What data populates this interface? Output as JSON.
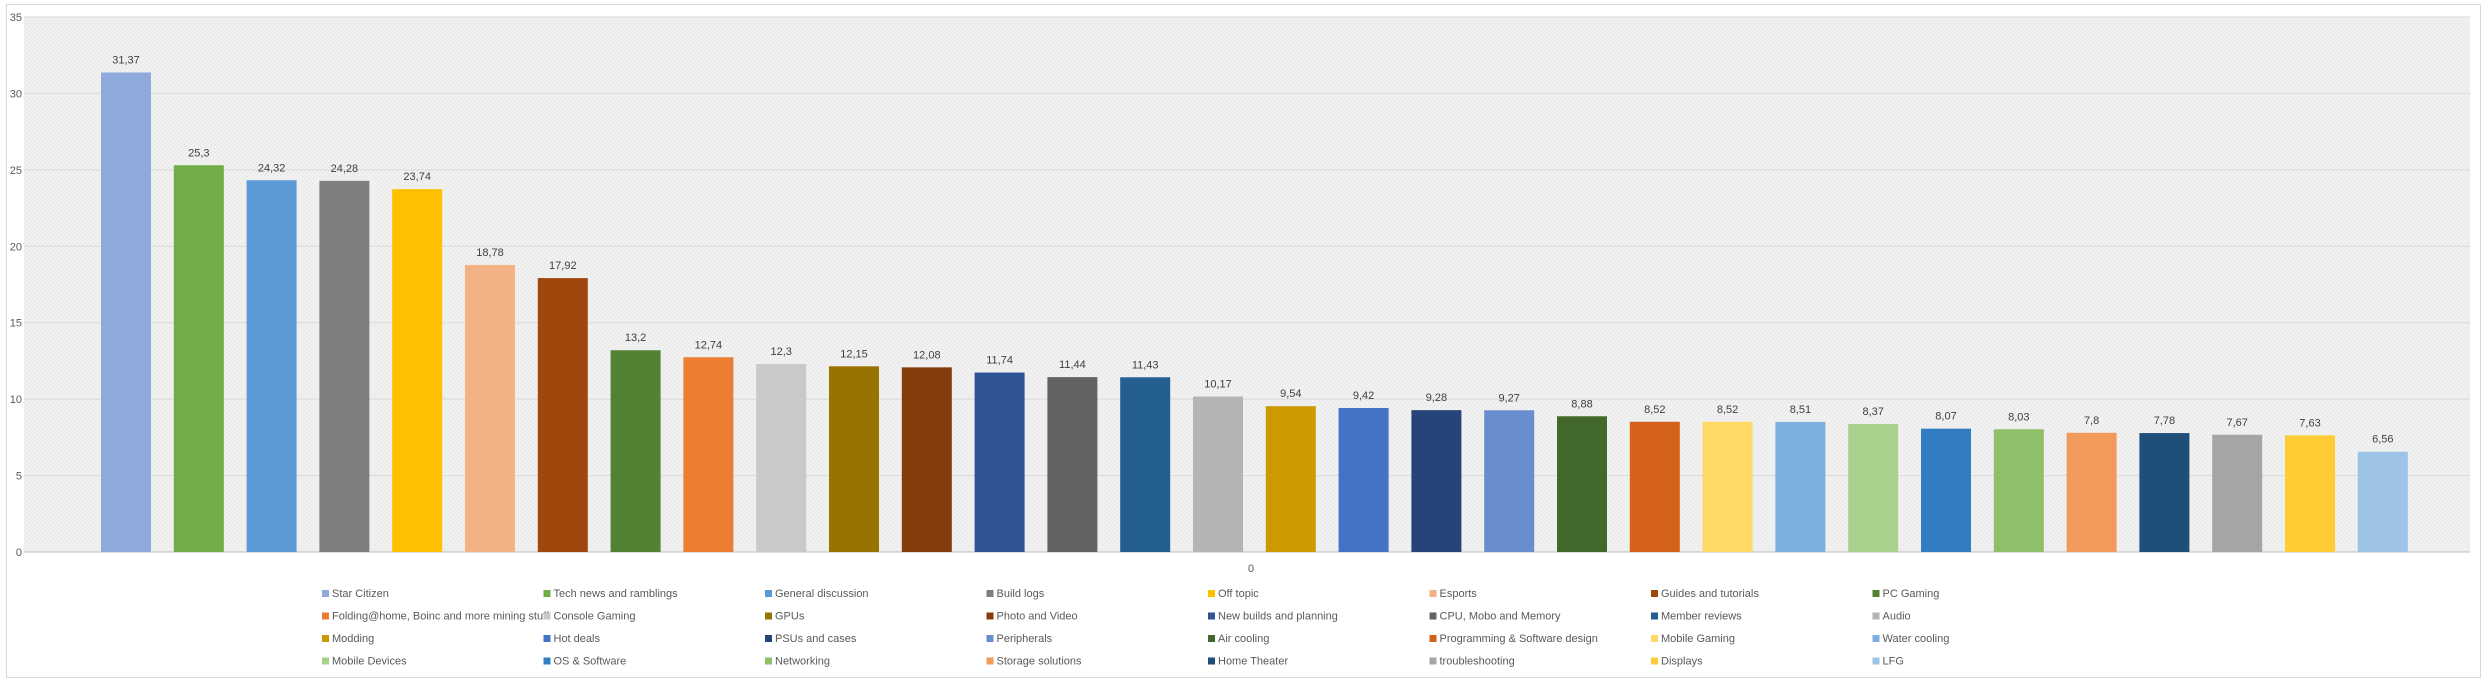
{
  "chart_data": {
    "type": "bar",
    "title": "",
    "xlabel": "",
    "ylabel": "",
    "ylim": [
      0,
      35
    ],
    "yticks": [
      0,
      5,
      10,
      15,
      20,
      25,
      30,
      35
    ],
    "x_axis_label": "0",
    "grid": true,
    "legend_position": "bottom",
    "series": [
      {
        "name": "Star Citizen",
        "value": 31.37,
        "label": "31,37",
        "color": "#8eaadb"
      },
      {
        "name": "Tech news and ramblings",
        "value": 25.3,
        "label": "25,3",
        "color": "#70ad47"
      },
      {
        "name": "General discussion",
        "value": 24.32,
        "label": "24,32",
        "color": "#5b9bd5"
      },
      {
        "name": "Build logs",
        "value": 24.28,
        "label": "24,28",
        "color": "#7f7f7f"
      },
      {
        "name": "Off topic",
        "value": 23.74,
        "label": "23,74",
        "color": "#ffc000"
      },
      {
        "name": "Esports",
        "value": 18.78,
        "label": "18,78",
        "color": "#f4b183"
      },
      {
        "name": "Guides and tutorials",
        "value": 17.92,
        "label": "17,92",
        "color": "#9e480e"
      },
      {
        "name": "PC Gaming",
        "value": 13.2,
        "label": "13,2",
        "color": "#548235"
      },
      {
        "name": "Folding@home, Boinc and more mining stuff",
        "value": 12.74,
        "label": "12,74",
        "color": "#ed7d31"
      },
      {
        "name": "Console Gaming",
        "value": 12.3,
        "label": "12,3",
        "color": "#c9c9c9"
      },
      {
        "name": "GPUs",
        "value": 12.15,
        "label": "12,15",
        "color": "#997300"
      },
      {
        "name": "Photo and Video",
        "value": 12.08,
        "label": "12,08",
        "color": "#843c0c"
      },
      {
        "name": "New builds and planning",
        "value": 11.74,
        "label": "11,74",
        "color": "#2f5597"
      },
      {
        "name": "CPU, Mobo and Memory",
        "value": 11.44,
        "label": "11,44",
        "color": "#636363"
      },
      {
        "name": "Member reviews",
        "value": 11.43,
        "label": "11,43",
        "color": "#255e91"
      },
      {
        "name": "Audio",
        "value": 10.17,
        "label": "10,17",
        "color": "#b4b4b4"
      },
      {
        "name": "Modding",
        "value": 9.54,
        "label": "9,54",
        "color": "#cc9900"
      },
      {
        "name": "Hot deals",
        "value": 9.42,
        "label": "9,42",
        "color": "#4472c4"
      },
      {
        "name": "PSUs and cases",
        "value": 9.28,
        "label": "9,28",
        "color": "#264478"
      },
      {
        "name": "Peripherals",
        "value": 9.27,
        "label": "9,27",
        "color": "#698ed0"
      },
      {
        "name": "Air cooling",
        "value": 8.88,
        "label": "8,88",
        "color": "#43682b"
      },
      {
        "name": "Programming & Software design",
        "value": 8.52,
        "label": "8,52",
        "color": "#d4621a"
      },
      {
        "name": "Mobile Gaming",
        "value": 8.52,
        "label": "8,52",
        "color": "#ffd966"
      },
      {
        "name": "Water cooling",
        "value": 8.51,
        "label": "8,51",
        "color": "#7cafdd"
      },
      {
        "name": "Mobile Devices",
        "value": 8.37,
        "label": "8,37",
        "color": "#a9d18e"
      },
      {
        "name": "OS & Software",
        "value": 8.07,
        "label": "8,07",
        "color": "#327dc2"
      },
      {
        "name": "Networking",
        "value": 8.03,
        "label": "8,03",
        "color": "#8fbf68"
      },
      {
        "name": "Storage solutions",
        "value": 7.8,
        "label": "7,8",
        "color": "#f19a5c"
      },
      {
        "name": "Home Theater",
        "value": 7.78,
        "label": "7,78",
        "color": "#1f4e79"
      },
      {
        "name": "troubleshooting",
        "value": 7.67,
        "label": "7,67",
        "color": "#a5a5a5"
      },
      {
        "name": "Displays",
        "value": 7.63,
        "label": "7,63",
        "color": "#ffcd33"
      },
      {
        "name": "LFG",
        "value": 6.56,
        "label": "6,56",
        "color": "#9dc3e6"
      }
    ]
  }
}
